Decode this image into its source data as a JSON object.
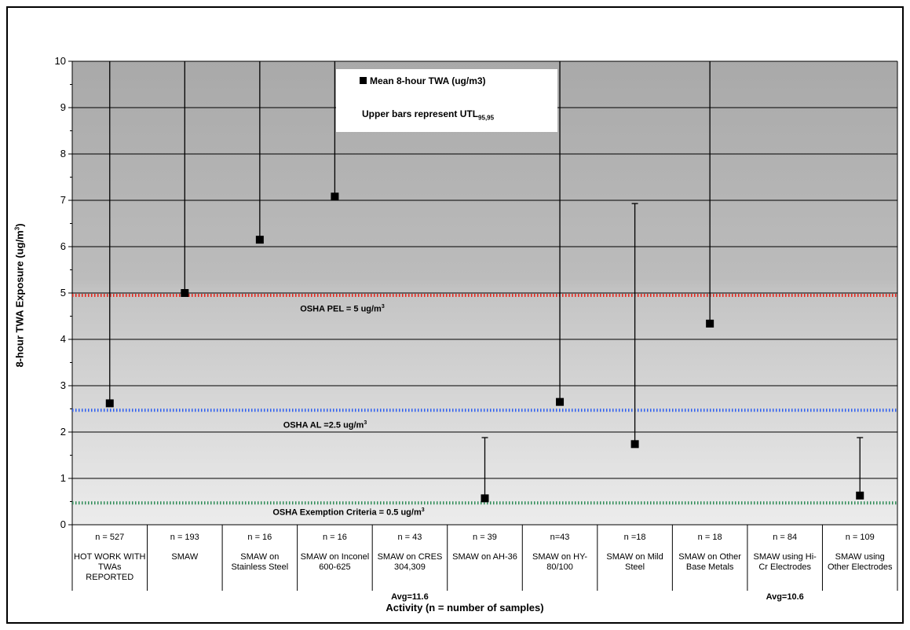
{
  "chart_data": {
    "type": "scatter",
    "title": "",
    "ylabel": "8-hour TWA Exposure (ug/m",
    "ylabel_sup": "3",
    "ylabel_end": ")",
    "xlabel": "Activity (n = number of samples)",
    "ylim": [
      0,
      10
    ],
    "yticks": [
      "0",
      "1",
      "2",
      "3",
      "4",
      "5",
      "6",
      "7",
      "8",
      "9",
      "10"
    ],
    "legend": {
      "series_label": "Mean 8-hour TWA (ug/m3)",
      "note": "Upper bars represent UTL",
      "note_sub": "95,95",
      "placement": "top-center"
    },
    "categories": [
      {
        "n": "n = 527",
        "label": "HOT WORK WITH TWAs REPORTED",
        "mean": 2.62,
        "upper": 10,
        "avg_note": ""
      },
      {
        "n": "n = 193",
        "label": "SMAW",
        "mean": 5.0,
        "upper": 10,
        "avg_note": ""
      },
      {
        "n": "n = 16",
        "label": "SMAW on Stainless Steel",
        "mean": 6.15,
        "upper": 10,
        "avg_note": ""
      },
      {
        "n": "n = 16",
        "label": "SMAW on Inconel 600-625",
        "mean": 7.08,
        "upper": 10,
        "avg_note": ""
      },
      {
        "n": "n = 43",
        "label": "SMAW on CRES 304,309",
        "mean": null,
        "upper": null,
        "avg_note": "Avg=11.6"
      },
      {
        "n": "n = 39",
        "label": "SMAW on AH-36",
        "mean": 0.57,
        "upper": 1.88,
        "avg_note": ""
      },
      {
        "n": "n=43",
        "label": "SMAW on HY-80/100",
        "mean": 2.65,
        "upper": 10,
        "avg_note": ""
      },
      {
        "n": "n =18",
        "label": "SMAW on Mild Steel",
        "mean": 1.74,
        "upper": 6.93,
        "avg_note": ""
      },
      {
        "n": "n = 18",
        "label": "SMAW on Other Base Metals",
        "mean": 4.34,
        "upper": 10,
        "avg_note": ""
      },
      {
        "n": "n = 84",
        "label": "SMAW using Hi-Cr Electrodes",
        "mean": null,
        "upper": null,
        "avg_note": "Avg=10.6"
      },
      {
        "n": "n = 109",
        "label": "SMAW using Other Electrodes",
        "mean": 0.63,
        "upper": 1.88,
        "avg_note": ""
      }
    ],
    "reference_lines": [
      {
        "label": "OSHA PEL = 5 ug/m",
        "label_sup": "3",
        "value": 4.95,
        "color": "#e8241a"
      },
      {
        "label": "OSHA AL =2.5 ug/m",
        "label_sup": "3",
        "value": 2.47,
        "color": "#2f5ff0"
      },
      {
        "label": "OSHA Exemption Criteria = 0.5 ug/m",
        "label_sup": "3",
        "value": 0.47,
        "color": "#2e8b57"
      }
    ],
    "grid": true
  }
}
